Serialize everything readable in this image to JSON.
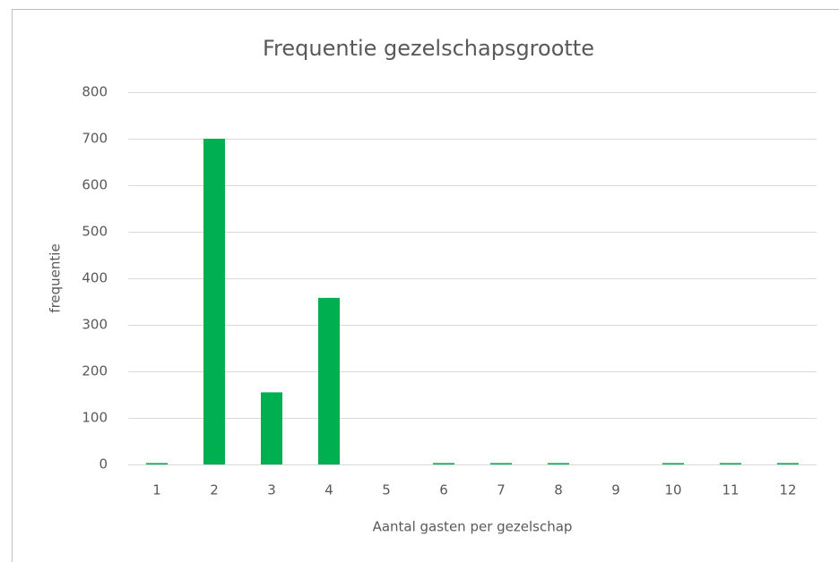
{
  "chart_data": {
    "type": "bar",
    "title": "Frequentie gezelschapsgrootte",
    "x_label": "Aantal gasten per gezelschap",
    "y_label": "frequentie",
    "categories": [
      "1",
      "2",
      "3",
      "4",
      "5",
      "6",
      "7",
      "8",
      "9",
      "10",
      "11",
      "12"
    ],
    "values": [
      3,
      700,
      155,
      358,
      0,
      3,
      3,
      3,
      0,
      3,
      3,
      3
    ],
    "color": "#00b050",
    "ylim": [
      0,
      800
    ],
    "yticks": [
      0,
      100,
      200,
      300,
      400,
      500,
      600,
      700,
      800
    ],
    "grid": true
  }
}
